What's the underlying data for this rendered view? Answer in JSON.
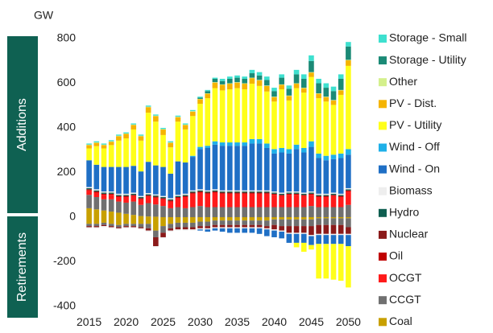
{
  "chart_data": {
    "type": "bar",
    "stacked": true,
    "title": "GW",
    "panel_labels": [
      "Additions",
      "Retirements"
    ],
    "x": [
      2015,
      2016,
      2017,
      2018,
      2019,
      2020,
      2021,
      2022,
      2023,
      2024,
      2025,
      2026,
      2027,
      2028,
      2029,
      2030,
      2031,
      2032,
      2033,
      2034,
      2035,
      2036,
      2037,
      2038,
      2039,
      2040,
      2041,
      2042,
      2043,
      2044,
      2045,
      2046,
      2047,
      2048,
      2049,
      2050
    ],
    "xlim": [
      2014.5,
      2050.5
    ],
    "xticks": [
      2015,
      2020,
      2025,
      2030,
      2035,
      2040,
      2045,
      2050
    ],
    "ylim": [
      -430,
      830
    ],
    "yticks": [
      -400,
      -200,
      0,
      200,
      400,
      600,
      800
    ],
    "series": [
      {
        "name": "Storage - Small",
        "color": "#3ee0cf",
        "values": [
          5,
          5,
          5,
          5,
          5,
          5,
          5,
          5,
          5,
          5,
          5,
          5,
          5,
          5,
          5,
          5,
          5,
          5,
          10,
          10,
          10,
          10,
          15,
          15,
          15,
          15,
          15,
          15,
          20,
          20,
          25,
          20,
          20,
          20,
          20,
          20
        ]
      },
      {
        "name": "Storage - Utility",
        "color": "#1b8a76",
        "values": [
          0,
          0,
          0,
          0,
          0,
          0,
          0,
          0,
          0,
          0,
          0,
          0,
          0,
          0,
          0,
          5,
          10,
          15,
          15,
          20,
          20,
          20,
          20,
          20,
          25,
          25,
          30,
          30,
          40,
          40,
          50,
          45,
          40,
          40,
          50,
          60
        ]
      },
      {
        "name": "Other",
        "color": "#d4f08c",
        "values": [
          2,
          2,
          2,
          2,
          2,
          2,
          2,
          2,
          2,
          2,
          2,
          2,
          2,
          2,
          2,
          2,
          2,
          2,
          2,
          2,
          2,
          2,
          2,
          2,
          2,
          2,
          2,
          2,
          2,
          2,
          2,
          2,
          2,
          2,
          2,
          2
        ]
      },
      {
        "name": "PV - Dist.",
        "color": "#f5b400",
        "values": [
          15,
          15,
          15,
          15,
          20,
          20,
          20,
          20,
          25,
          25,
          25,
          20,
          20,
          20,
          20,
          20,
          20,
          25,
          25,
          25,
          25,
          25,
          25,
          25,
          25,
          20,
          20,
          20,
          20,
          20,
          20,
          20,
          20,
          20,
          20,
          25
        ]
      },
      {
        "name": "PV - Utility",
        "color": "#ffff1a",
        "values": [
          53,
          83,
          83,
          98,
          118,
          128,
          163,
          138,
          220,
          196,
          143,
          118,
          178,
          148,
          178,
          193,
          213,
          238,
          233,
          238,
          243,
          238,
          248,
          238,
          233,
          213,
          263,
          218,
          253,
          248,
          288,
          248,
          243,
          223,
          263,
          373
        ],
        "retirements": [
          0,
          0,
          0,
          0,
          0,
          0,
          0,
          0,
          0,
          0,
          0,
          0,
          0,
          0,
          0,
          0,
          0,
          0,
          0,
          0,
          0,
          0,
          0,
          0,
          0,
          0,
          0,
          0,
          -20,
          -40,
          -20,
          -155,
          -155,
          -160,
          -165,
          -185
        ]
      },
      {
        "name": "Wind - Off",
        "color": "#1fb0e8",
        "values": [
          0,
          0,
          0,
          0,
          0,
          0,
          0,
          0,
          0,
          0,
          0,
          0,
          0,
          0,
          5,
          10,
          10,
          15,
          15,
          15,
          15,
          15,
          20,
          20,
          20,
          20,
          20,
          20,
          20,
          20,
          25,
          20,
          20,
          20,
          20,
          25
        ]
      },
      {
        "name": "Wind - On",
        "color": "#1f6fc5",
        "values": [
          120,
          110,
          110,
          110,
          120,
          120,
          120,
          110,
          140,
          130,
          130,
          110,
          150,
          140,
          150,
          180,
          190,
          200,
          200,
          200,
          200,
          200,
          210,
          210,
          190,
          170,
          180,
          170,
          190,
          180,
          200,
          160,
          150,
          150,
          160,
          150
        ],
        "retirements": [
          0,
          0,
          0,
          0,
          0,
          0,
          0,
          0,
          0,
          0,
          0,
          0,
          0,
          0,
          0,
          -5,
          -10,
          -10,
          -15,
          -20,
          -20,
          -20,
          -20,
          -25,
          -30,
          -30,
          -30,
          -40,
          -40,
          -40,
          -40,
          -40,
          -40,
          -40,
          -40,
          -50
        ]
      },
      {
        "name": "Biomass",
        "color": "#eeeeee",
        "values": [
          5,
          5,
          5,
          5,
          5,
          5,
          5,
          5,
          5,
          5,
          5,
          5,
          5,
          5,
          5,
          5,
          5,
          5,
          5,
          5,
          5,
          5,
          5,
          5,
          5,
          5,
          5,
          5,
          5,
          5,
          5,
          5,
          5,
          5,
          5,
          5
        ],
        "retirements": [
          -5,
          -5,
          -5,
          -5,
          -5,
          -5,
          -5,
          -5,
          -5,
          -5,
          -5,
          -5,
          -5,
          -5,
          -5,
          -5,
          -5,
          -5,
          -5,
          -5,
          -5,
          -5,
          -5,
          -5,
          -5,
          -5,
          -5,
          -5,
          -5,
          -5,
          -5,
          -5,
          -5,
          -5,
          -5,
          -5
        ]
      },
      {
        "name": "Hydro",
        "color": "#0e5e50",
        "values": [
          5,
          5,
          5,
          5,
          5,
          5,
          5,
          5,
          5,
          5,
          5,
          5,
          5,
          5,
          5,
          5,
          5,
          5,
          5,
          5,
          5,
          5,
          5,
          5,
          5,
          5,
          5,
          5,
          5,
          5,
          5,
          5,
          5,
          5,
          5,
          5
        ]
      },
      {
        "name": "Nuclear",
        "color": "#8b1a1a",
        "values": [
          0,
          0,
          0,
          0,
          0,
          0,
          0,
          0,
          0,
          0,
          0,
          0,
          0,
          0,
          0,
          0,
          0,
          0,
          0,
          0,
          0,
          0,
          0,
          0,
          0,
          0,
          0,
          0,
          0,
          0,
          0,
          0,
          0,
          0,
          0,
          0
        ],
        "retirements": [
          -5,
          -5,
          -5,
          -5,
          -5,
          -5,
          -5,
          -5,
          -10,
          -40,
          -20,
          -10,
          -10,
          -10,
          -10,
          -10,
          -10,
          -10,
          -10,
          -10,
          -10,
          -10,
          -10,
          -10,
          -10,
          -20,
          -20,
          -30,
          -30,
          -30,
          -40,
          -40,
          -40,
          -40,
          -40,
          -30
        ]
      },
      {
        "name": "Oil",
        "color": "#c00000",
        "values": [
          5,
          5,
          5,
          5,
          5,
          5,
          5,
          5,
          5,
          5,
          5,
          5,
          5,
          5,
          5,
          5,
          5,
          5,
          5,
          5,
          5,
          5,
          5,
          5,
          5,
          5,
          5,
          5,
          5,
          5,
          5,
          5,
          5,
          5,
          5,
          5
        ]
      },
      {
        "name": "OCGT",
        "color": "#ff1a1a",
        "values": [
          20,
          20,
          20,
          20,
          20,
          25,
          25,
          25,
          30,
          30,
          30,
          30,
          40,
          50,
          60,
          60,
          60,
          65,
          60,
          60,
          60,
          60,
          60,
          60,
          60,
          55,
          50,
          55,
          55,
          50,
          50,
          45,
          45,
          50,
          45,
          60
        ]
      },
      {
        "name": "CCGT",
        "color": "#707070",
        "values": [
          60,
          55,
          50,
          55,
          50,
          50,
          60,
          50,
          60,
          55,
          50,
          40,
          45,
          40,
          45,
          50,
          45,
          45,
          45,
          45,
          45,
          45,
          45,
          45,
          45,
          45,
          45,
          45,
          45,
          45,
          50,
          45,
          45,
          45,
          45,
          55
        ],
        "retirements": [
          -10,
          -10,
          -10,
          -10,
          -10,
          -10,
          -10,
          -15,
          -20,
          -30,
          -30,
          -20,
          -20,
          -20,
          -20,
          -20,
          -20,
          -20,
          -20,
          -20,
          -20,
          -20,
          -20,
          -20,
          -25,
          -25,
          -30,
          -30,
          -30,
          -30,
          -30,
          -30,
          -30,
          -30,
          -30,
          -40
        ]
      },
      {
        "name": "Coal",
        "color": "#c8a000",
        "values": [
          40,
          35,
          30,
          25,
          20,
          15,
          10,
          5,
          3,
          2,
          0,
          0,
          0,
          0,
          0,
          0,
          0,
          0,
          0,
          0,
          0,
          0,
          0,
          0,
          0,
          0,
          0,
          0,
          0,
          0,
          0,
          0,
          0,
          0,
          0,
          0
        ],
        "retirements": [
          -30,
          -30,
          -25,
          -30,
          -35,
          -30,
          -30,
          -30,
          -30,
          -60,
          -40,
          -30,
          -25,
          -25,
          -25,
          -20,
          -20,
          -15,
          -15,
          -15,
          -15,
          -15,
          -15,
          -15,
          -15,
          -10,
          -10,
          -10,
          -10,
          -10,
          -10,
          -5,
          -5,
          -5,
          -5,
          -5
        ]
      }
    ]
  }
}
